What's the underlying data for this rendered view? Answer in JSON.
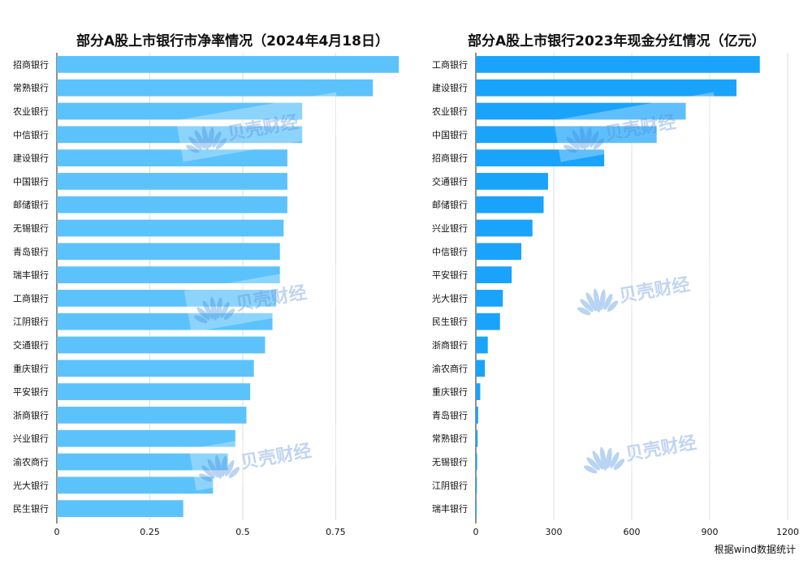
{
  "source_note": "根据wind数据统计",
  "watermark_text": "贝壳财经",
  "chart_data": [
    {
      "type": "bar",
      "orientation": "horizontal",
      "title": "部分A股上市银行市净率情况（2024年4月18日）",
      "color": "#5cc2fb",
      "xlim": [
        0,
        0.95
      ],
      "xticks": [
        0,
        0.25,
        0.5,
        0.75
      ],
      "xtick_labels": [
        "0",
        "0.25",
        "0.5",
        "0.75"
      ],
      "grid": true,
      "categories": [
        "招商银行",
        "常熟银行",
        "农业银行",
        "中信银行",
        "建设银行",
        "中国银行",
        "邮储银行",
        "无锡银行",
        "青岛银行",
        "瑞丰银行",
        "工商银行",
        "江阴银行",
        "交通银行",
        "重庆银行",
        "平安银行",
        "浙商银行",
        "兴业银行",
        "渝农商行",
        "光大银行",
        "民生银行"
      ],
      "values": [
        0.92,
        0.85,
        0.66,
        0.66,
        0.62,
        0.62,
        0.62,
        0.61,
        0.6,
        0.6,
        0.59,
        0.58,
        0.56,
        0.53,
        0.52,
        0.51,
        0.48,
        0.46,
        0.42,
        0.34
      ]
    },
    {
      "type": "bar",
      "orientation": "horizontal",
      "title": "部分A股上市银行2023年现金分红情况（亿元）",
      "color": "#1aa3fb",
      "xlim": [
        0,
        1200
      ],
      "xticks": [
        0,
        300,
        600,
        900,
        1200
      ],
      "xtick_labels": [
        "0",
        "300",
        "600",
        "900",
        "1200"
      ],
      "grid": true,
      "categories": [
        "工商银行",
        "建设银行",
        "农业银行",
        "中国银行",
        "招商银行",
        "交通银行",
        "邮储银行",
        "兴业银行",
        "中信银行",
        "平安银行",
        "光大银行",
        "民生银行",
        "浙商银行",
        "渝农商行",
        "重庆银行",
        "青岛银行",
        "常熟银行",
        "无锡银行",
        "江阴银行",
        "瑞丰银行"
      ],
      "values": [
        1093,
        1003,
        808,
        696,
        494,
        278,
        261,
        218,
        175,
        138,
        104,
        93,
        46,
        35,
        17,
        9,
        7,
        5,
        4,
        3
      ]
    }
  ]
}
